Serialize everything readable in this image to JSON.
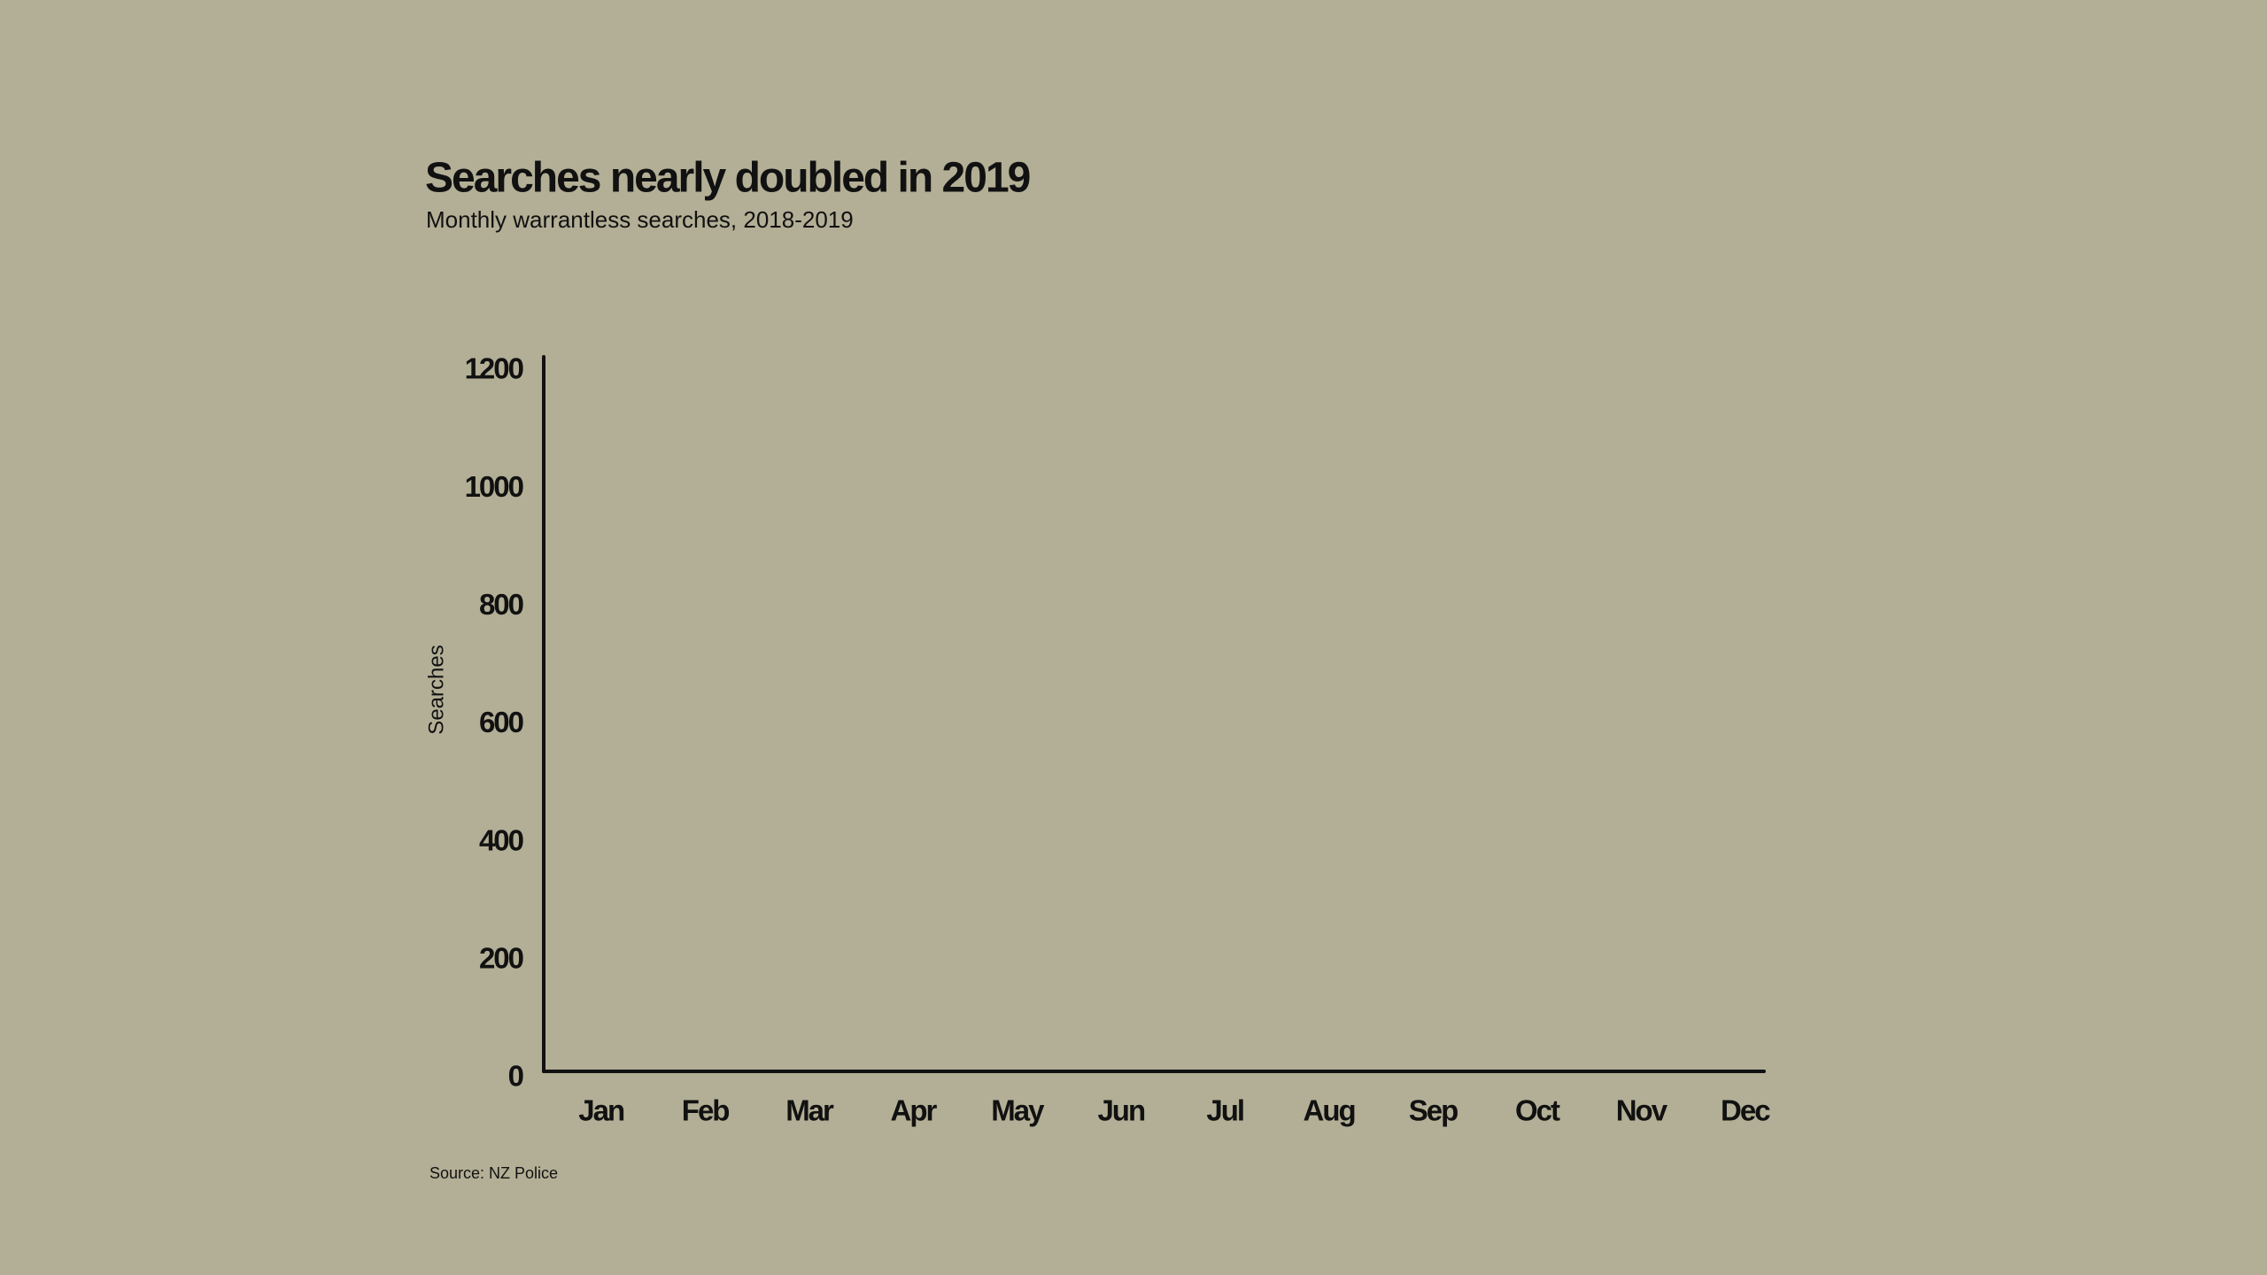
{
  "chart_data": {
    "type": "line",
    "title": "Searches nearly doubled in 2019",
    "subtitle": "Monthly warrantless searches, 2018-2019",
    "y_label": "Searches",
    "source": "Source: NZ Police",
    "categories": [
      "Jan",
      "Feb",
      "Mar",
      "Apr",
      "May",
      "Jun",
      "Jul",
      "Aug",
      "Sep",
      "Oct",
      "Nov",
      "Dec"
    ],
    "ylim": [
      0,
      1200
    ],
    "yticks": [
      0,
      200,
      400,
      600,
      800,
      1000,
      1200
    ],
    "grid": false
  }
}
